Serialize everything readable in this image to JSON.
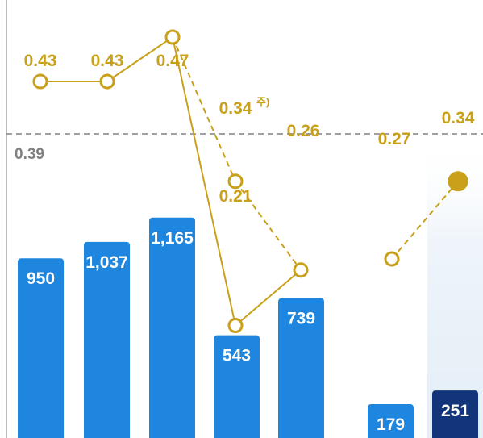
{
  "chart_data": {
    "type": "bar+line",
    "bars": {
      "values": [
        950,
        1037,
        1165,
        543,
        739,
        179,
        251
      ],
      "labels": [
        "950",
        "1,037",
        "1,165",
        "543",
        "739",
        "179",
        "251"
      ],
      "ylim": [
        0,
        1300
      ],
      "highlight_index": 6
    },
    "line": {
      "values": [
        0.43,
        0.43,
        0.47,
        0.34,
        0.26,
        0.21,
        0.27,
        0.34
      ],
      "labels": [
        "0.43",
        "0.43",
        "0.47",
        "0.34",
        "0.26",
        "0.21",
        "0.27",
        "0.34"
      ],
      "note": "주)",
      "ylim": [
        0.15,
        0.5
      ]
    },
    "reference": {
      "value": 0.39,
      "label": "0.39"
    },
    "colors": {
      "bar": "#1e86de",
      "bar_highlight": "#12357a",
      "line": "#c9a01a",
      "reference": "#808080",
      "highlight_band": "#eef4fa"
    }
  }
}
